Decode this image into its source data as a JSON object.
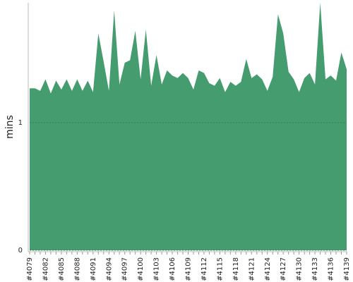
{
  "chart_data": {
    "type": "area",
    "y_label": "mins",
    "color": "#459c6e",
    "categories": [
      "#4079",
      null,
      null,
      "#4082",
      null,
      null,
      "#4085",
      null,
      null,
      "#4088",
      null,
      null,
      "#4091",
      null,
      null,
      "#4094",
      null,
      null,
      "#4097",
      null,
      null,
      "#4100",
      null,
      null,
      "#4103",
      null,
      null,
      "#4106",
      null,
      null,
      "#4109",
      null,
      null,
      "#4112",
      null,
      null,
      "#4115",
      null,
      null,
      "#4118",
      null,
      null,
      "#4121",
      null,
      null,
      "#4124",
      null,
      null,
      "#4127",
      null,
      null,
      "#4130",
      null,
      null,
      "#4133",
      null,
      null,
      "#4136",
      null,
      null,
      "#4139"
    ],
    "values": [
      1.27,
      1.27,
      1.25,
      1.34,
      1.23,
      1.33,
      1.26,
      1.34,
      1.25,
      1.34,
      1.25,
      1.33,
      1.24,
      1.7,
      1.48,
      1.25,
      1.88,
      1.3,
      1.47,
      1.49,
      1.72,
      1.34,
      1.73,
      1.29,
      1.53,
      1.3,
      1.41,
      1.37,
      1.35,
      1.39,
      1.35,
      1.26,
      1.41,
      1.39,
      1.31,
      1.29,
      1.35,
      1.24,
      1.32,
      1.29,
      1.32,
      1.5,
      1.35,
      1.38,
      1.34,
      1.25,
      1.36,
      1.85,
      1.7,
      1.4,
      1.34,
      1.24,
      1.35,
      1.39,
      1.3,
      1.94,
      1.34,
      1.37,
      1.33,
      1.55,
      1.42
    ],
    "ylim": [
      0,
      1.94
    ],
    "yticks": [
      0,
      1
    ],
    "grid": true
  }
}
